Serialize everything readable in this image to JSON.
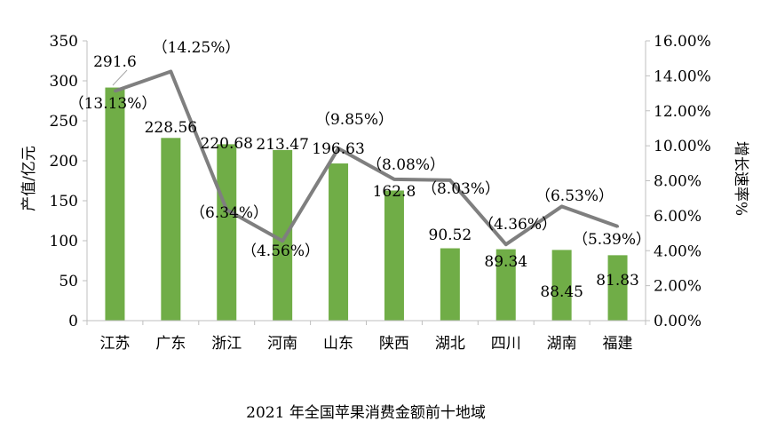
{
  "chart_data": {
    "type": "bar",
    "title": "2021 年全国苹果消费金额前十地域",
    "ylabel": "产值/亿元",
    "y2label": "增长速率%",
    "categories": [
      "江苏",
      "广东",
      "浙江",
      "河南",
      "山东",
      "陕西",
      "湖北",
      "四川",
      "湖南",
      "福建"
    ],
    "series": [
      {
        "type": "bar",
        "values": [
          291.6,
          228.56,
          220.68,
          213.47,
          196.63,
          162.8,
          90.52,
          89.34,
          88.45,
          81.83
        ],
        "labels": [
          "291.6",
          "228.56",
          "220.68",
          "213.47",
          "196.63",
          "162.8",
          "90.52",
          "89.34",
          "88.45",
          "81.83"
        ],
        "color": "#70ad47",
        "axis": "left"
      },
      {
        "type": "line",
        "values": [
          13.13,
          14.25,
          6.34,
          4.56,
          9.85,
          8.08,
          8.03,
          4.36,
          6.53,
          5.39
        ],
        "labels": [
          "（13.13%）",
          "（14.25%）",
          "（6.34%）",
          "（4.56%）",
          "（9.85%）",
          "（8.08%）",
          "（8.03%）",
          "（4.36%）",
          "（6.53%）",
          "（5.39%）"
        ],
        "color": "#7f7f7f",
        "axis": "right"
      }
    ],
    "ylim": [
      0,
      350
    ],
    "yticks": [
      "0",
      "50",
      "100",
      "150",
      "200",
      "250",
      "300",
      "350"
    ],
    "y2lim": [
      0,
      16
    ],
    "y2ticks": [
      "0.00%",
      "2.00%",
      "4.00%",
      "6.00%",
      "8.00%",
      "10.00%",
      "12.00%",
      "14.00%",
      "16.00%"
    ],
    "grid": false,
    "legend": "none"
  }
}
